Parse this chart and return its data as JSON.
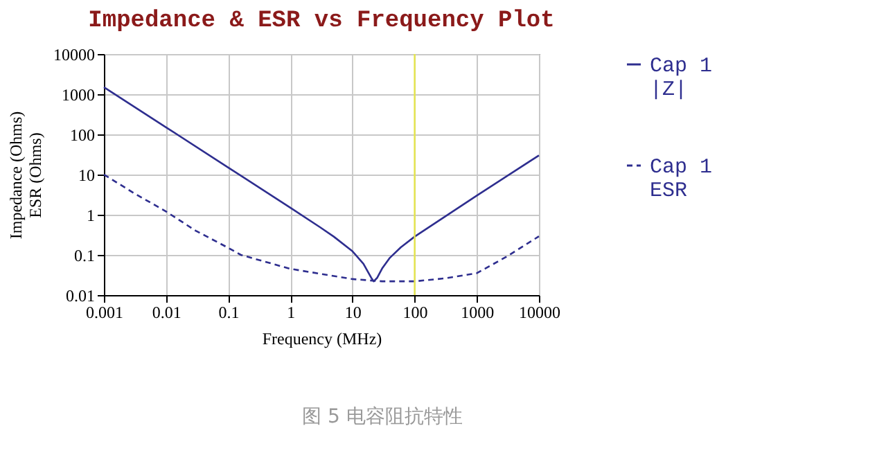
{
  "chart_data": {
    "type": "line",
    "title": "Impedance & ESR vs Frequency Plot",
    "xlabel": "Frequency (MHz)",
    "ylabel": "Impedance (Ohms)\nESR (Ohms)",
    "annotations": [
      "图 5 电容阻抗特性"
    ],
    "log": "xy",
    "grid": true,
    "legend": "right",
    "xlim": [
      0.001,
      10000
    ],
    "xticks": [
      0.001,
      0.01,
      0.1,
      1,
      10,
      100,
      1000,
      10000
    ],
    "ylim": [
      0.01,
      10000
    ],
    "yticks": [
      0.01,
      0.1,
      1,
      10,
      100,
      1000,
      10000
    ],
    "ref_lines": [
      {
        "axis": "x",
        "value": 100,
        "color": "#e6e64a"
      }
    ],
    "series": [
      {
        "name": "Cap 1\n|Z|",
        "color": "#2e2e8f",
        "line_style": "solid",
        "x": [
          0.001,
          0.01,
          0.1,
          1,
          3,
          5,
          10,
          15,
          20,
          22,
          25,
          30,
          40,
          60,
          100,
          1000,
          10000
        ],
        "values": [
          1500,
          150,
          15,
          1.5,
          0.49,
          0.285,
          0.123,
          0.06,
          0.027,
          0.022,
          0.027,
          0.046,
          0.085,
          0.155,
          0.285,
          3,
          30
        ]
      },
      {
        "name": "Cap 1\nESR",
        "color": "#2e2e8f",
        "line_style": "dashed",
        "x": [
          0.001,
          0.003,
          0.01,
          0.03,
          0.1,
          0.16,
          1,
          10,
          30,
          100,
          300,
          1000,
          3000,
          10000
        ],
        "values": [
          10,
          3.5,
          1.2,
          0.4,
          0.15,
          0.1,
          0.045,
          0.025,
          0.022,
          0.022,
          0.026,
          0.035,
          0.09,
          0.29
        ]
      }
    ]
  }
}
